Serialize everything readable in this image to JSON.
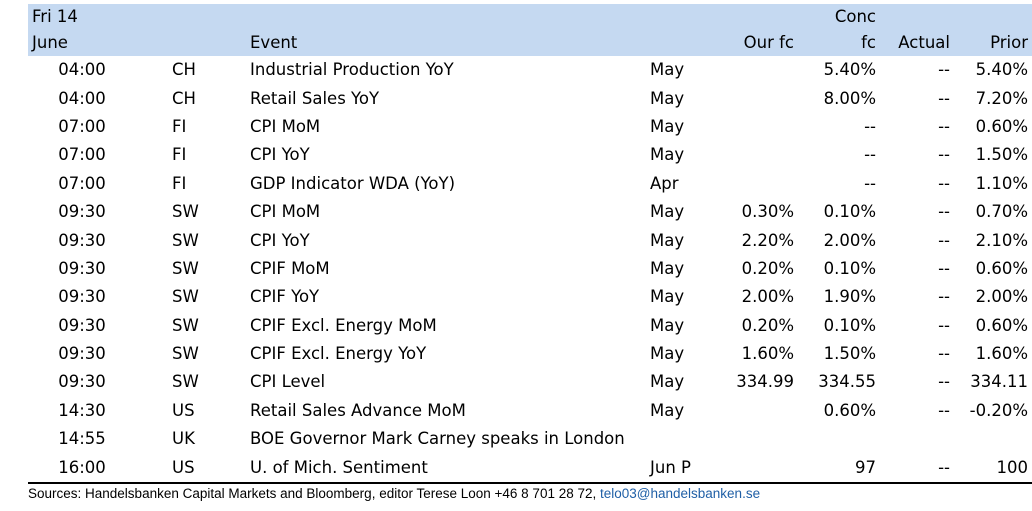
{
  "header": {
    "date_line1": "Fri 14",
    "date_line2": "June",
    "event_label": "Event",
    "our_fc_label": "Our fc",
    "conc_fc_line1": "Conc",
    "conc_fc_line2": "fc",
    "actual_label": "Actual",
    "prior_label": "Prior"
  },
  "rows": [
    {
      "time": "04:00",
      "country": "CH",
      "event": "Industrial Production YoY",
      "period": "May",
      "our_fc": "",
      "conc_fc": "5.40%",
      "actual": "--",
      "prior": "5.40%"
    },
    {
      "time": "04:00",
      "country": "CH",
      "event": "Retail Sales YoY",
      "period": "May",
      "our_fc": "",
      "conc_fc": "8.00%",
      "actual": "--",
      "prior": "7.20%"
    },
    {
      "time": "07:00",
      "country": "FI",
      "event": "CPI MoM",
      "period": "May",
      "our_fc": "",
      "conc_fc": "--",
      "actual": "--",
      "prior": "0.60%"
    },
    {
      "time": "07:00",
      "country": "FI",
      "event": "CPI YoY",
      "period": "May",
      "our_fc": "",
      "conc_fc": "--",
      "actual": "--",
      "prior": "1.50%"
    },
    {
      "time": "07:00",
      "country": "FI",
      "event": "GDP Indicator WDA (YoY)",
      "period": "Apr",
      "our_fc": "",
      "conc_fc": "--",
      "actual": "--",
      "prior": "1.10%"
    },
    {
      "time": "09:30",
      "country": "SW",
      "event": "CPI MoM",
      "period": "May",
      "our_fc": "0.30%",
      "conc_fc": "0.10%",
      "actual": "--",
      "prior": "0.70%"
    },
    {
      "time": "09:30",
      "country": "SW",
      "event": "CPI YoY",
      "period": "May",
      "our_fc": "2.20%",
      "conc_fc": "2.00%",
      "actual": "--",
      "prior": "2.10%"
    },
    {
      "time": "09:30",
      "country": "SW",
      "event": "CPIF MoM",
      "period": "May",
      "our_fc": "0.20%",
      "conc_fc": "0.10%",
      "actual": "--",
      "prior": "0.60%"
    },
    {
      "time": "09:30",
      "country": "SW",
      "event": "CPIF YoY",
      "period": "May",
      "our_fc": "2.00%",
      "conc_fc": "1.90%",
      "actual": "--",
      "prior": "2.00%"
    },
    {
      "time": "09:30",
      "country": "SW",
      "event": "CPIF Excl. Energy MoM",
      "period": "May",
      "our_fc": "0.20%",
      "conc_fc": "0.10%",
      "actual": "--",
      "prior": "0.60%"
    },
    {
      "time": "09:30",
      "country": "SW",
      "event": "CPIF Excl. Energy YoY",
      "period": "May",
      "our_fc": "1.60%",
      "conc_fc": "1.50%",
      "actual": "--",
      "prior": "1.60%"
    },
    {
      "time": "09:30",
      "country": "SW",
      "event": "CPI Level",
      "period": "May",
      "our_fc": "334.99",
      "conc_fc": "334.55",
      "actual": "--",
      "prior": "334.11"
    },
    {
      "time": "14:30",
      "country": "US",
      "event": "Retail Sales Advance MoM",
      "period": "May",
      "our_fc": "",
      "conc_fc": "0.60%",
      "actual": "--",
      "prior": "-0.20%"
    },
    {
      "time": "14:55",
      "country": "UK",
      "event": "BOE Governor Mark Carney speaks in London",
      "period": "",
      "our_fc": "",
      "conc_fc": "",
      "actual": "",
      "prior": ""
    },
    {
      "time": "16:00",
      "country": "US",
      "event": "U. of Mich. Sentiment",
      "period": "Jun P",
      "our_fc": "",
      "conc_fc": "97",
      "actual": "--",
      "prior": "100"
    }
  ],
  "footer": {
    "sources_text": "Sources: Handelsbanken Capital Markets and Bloomberg, editor Terese Loon +46 8 701 28 72, ",
    "email": "telo03@handelsbanken.se"
  },
  "colors": {
    "header_bg": "#c5d9f1",
    "email_link": "#1f5fa6"
  }
}
